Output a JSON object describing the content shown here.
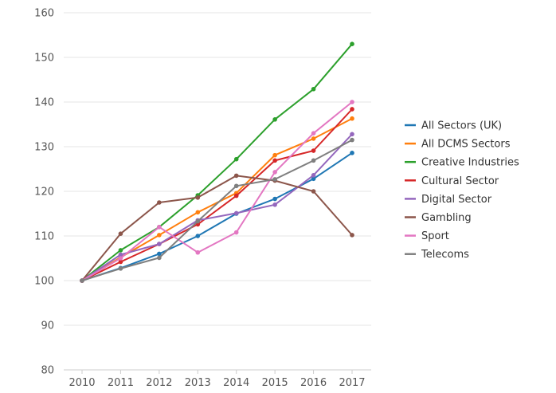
{
  "chart_data": {
    "type": "line",
    "title": "",
    "xlabel": "",
    "ylabel": "",
    "x": [
      2010,
      2011,
      2012,
      2013,
      2014,
      2015,
      2016,
      2017
    ],
    "ylim": [
      80,
      160
    ],
    "yticks": [
      80,
      90,
      100,
      110,
      120,
      130,
      140,
      150,
      160
    ],
    "grid": "horizontal",
    "legend": "right",
    "series": [
      {
        "name": "All Sectors (UK)",
        "color": "#1f77b4",
        "values": [
          100,
          102.8,
          106.0,
          110.0,
          115.0,
          118.3,
          122.8,
          128.6
        ]
      },
      {
        "name": "All DCMS Sectors",
        "color": "#ff7f0e",
        "values": [
          100,
          105.2,
          110.2,
          115.3,
          119.6,
          128.1,
          131.8,
          136.3
        ]
      },
      {
        "name": "Creative Industries",
        "color": "#2ca02c",
        "values": [
          100,
          106.8,
          112.0,
          119.1,
          127.2,
          136.1,
          142.9,
          153.0
        ]
      },
      {
        "name": "Cultural Sector",
        "color": "#d62728",
        "values": [
          100,
          104.2,
          108.2,
          112.6,
          119.0,
          126.9,
          129.1,
          138.4
        ]
      },
      {
        "name": "Digital Sector",
        "color": "#9467bd",
        "values": [
          100,
          105.8,
          108.2,
          113.5,
          115.1,
          117.0,
          123.6,
          132.8
        ]
      },
      {
        "name": "Gambling",
        "color": "#8c564b",
        "values": [
          100,
          110.5,
          117.5,
          118.6,
          123.5,
          122.4,
          120.0,
          110.2
        ]
      },
      {
        "name": "Sport",
        "color": "#e377c2",
        "values": [
          100,
          105.0,
          112.0,
          106.3,
          110.8,
          124.3,
          133.0,
          140.0
        ]
      },
      {
        "name": "Telecoms",
        "color": "#7f7f7f",
        "values": [
          100,
          102.7,
          105.1,
          113.3,
          121.2,
          122.7,
          126.9,
          131.5
        ]
      }
    ]
  }
}
